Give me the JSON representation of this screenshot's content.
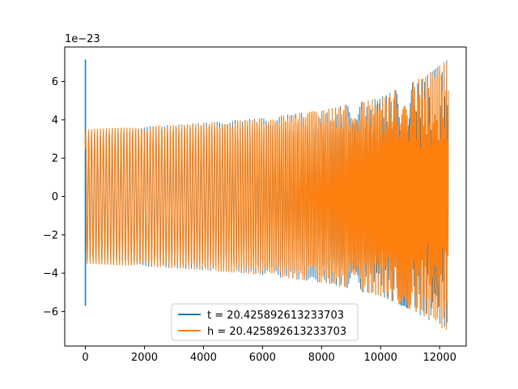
{
  "chart_data": {
    "type": "line",
    "title": "",
    "xlabel": "",
    "ylabel": "",
    "y_scale_label": "1e−23",
    "xlim": [
      -700,
      12900
    ],
    "ylim": [
      -7.8,
      7.8
    ],
    "x_ticks": [
      0,
      2000,
      4000,
      6000,
      8000,
      10000,
      12000
    ],
    "x_tick_labels": [
      "0",
      "2000",
      "4000",
      "6000",
      "8000",
      "10000",
      "12000"
    ],
    "y_ticks": [
      -6,
      -4,
      -2,
      0,
      2,
      4,
      6
    ],
    "y_tick_labels": [
      "−6",
      "−4",
      "−2",
      "0",
      "2",
      "4",
      "6"
    ],
    "grid": false,
    "legend_position": "bottom-center",
    "series": [
      {
        "name": "t = 20.425892613233703",
        "color": "#1f77b4",
        "spike": {
          "x": 0,
          "ymin": -5.7,
          "ymax": 7.15
        },
        "envelope": [
          [
            0,
            3.5
          ],
          [
            2000,
            3.65
          ],
          [
            4000,
            3.85
          ],
          [
            6000,
            4.1
          ],
          [
            8000,
            4.5
          ],
          [
            10000,
            5.2
          ],
          [
            11000,
            5.9
          ],
          [
            11800,
            6.6
          ],
          [
            12300,
            7.2
          ]
        ]
      },
      {
        "name": "h = 20.425892613233703",
        "color": "#ff7f0e",
        "envelope": [
          [
            0,
            3.5
          ],
          [
            2000,
            3.65
          ],
          [
            4000,
            3.85
          ],
          [
            6000,
            4.1
          ],
          [
            8000,
            4.5
          ],
          [
            10000,
            5.2
          ],
          [
            11000,
            5.9
          ],
          [
            11800,
            6.6
          ],
          [
            12300,
            7.2
          ]
        ]
      }
    ],
    "x_end": 12300
  }
}
